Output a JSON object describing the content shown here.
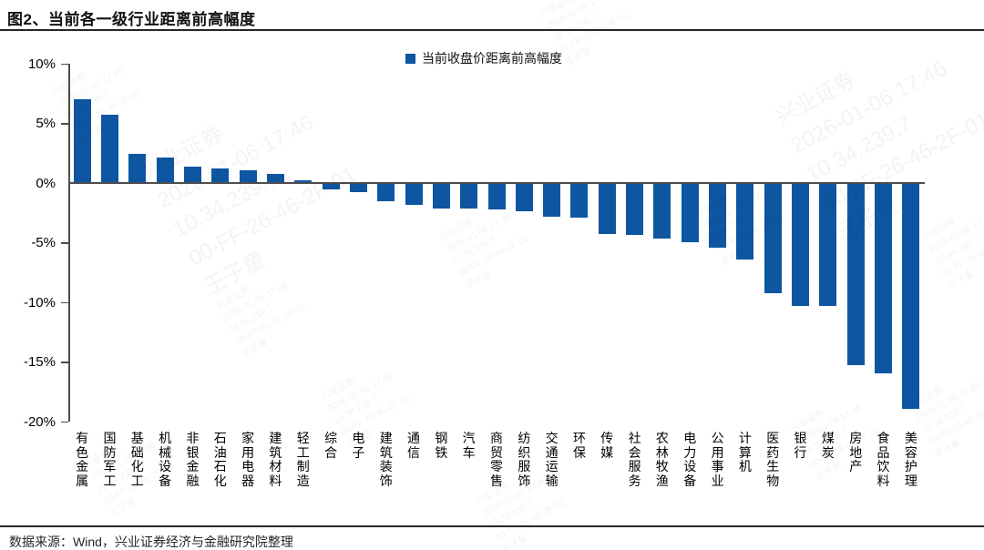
{
  "title": "图2、当前各一级行业距离前高幅度",
  "footer": {
    "source": "数据来源：Wind，兴业证券经济与金融研究院整理"
  },
  "watermark": {
    "lines": [
      "兴业证券",
      "2026-01-06 17:46",
      "10.34.239.7",
      "00-FF-26-46-2F-01",
      "王子童"
    ]
  },
  "chart_data": {
    "type": "bar",
    "title": "图2、当前各一级行业距离前高幅度",
    "legend": "当前收盘价距离前高幅度",
    "bar_color": "#0E56A1",
    "axis_color": "#4d4d4d",
    "unit": "%",
    "ylim": [
      -20,
      10
    ],
    "yticks": [
      10,
      5,
      0,
      -5,
      -10,
      -15,
      -20
    ],
    "grid": false,
    "legend_position": "top-center",
    "xlabel": "",
    "ylabel": "",
    "categories": [
      "有色金属",
      "国防军工",
      "基础化工",
      "机械设备",
      "非银金融",
      "石油石化",
      "家用电器",
      "建筑材料",
      "轻工制造",
      "综合",
      "电子",
      "建筑装饰",
      "通信",
      "钢铁",
      "汽车",
      "商贸零售",
      "纺织服饰",
      "交通运输",
      "环保",
      "传媒",
      "社会服务",
      "农林牧渔",
      "电力设备",
      "公用事业",
      "计算机",
      "医药生物",
      "银行",
      "煤炭",
      "房地产",
      "食品饮料",
      "美容护理"
    ],
    "values": [
      7.0,
      5.7,
      2.4,
      2.1,
      1.3,
      1.2,
      1.0,
      0.7,
      0.2,
      -0.5,
      -0.7,
      -1.5,
      -1.8,
      -2.1,
      -2.1,
      -2.2,
      -2.3,
      -2.8,
      -2.9,
      -4.2,
      -4.3,
      -4.6,
      -4.9,
      -5.4,
      -6.4,
      -9.2,
      -10.3,
      -10.3,
      -15.2,
      -15.9,
      -18.9
    ]
  }
}
